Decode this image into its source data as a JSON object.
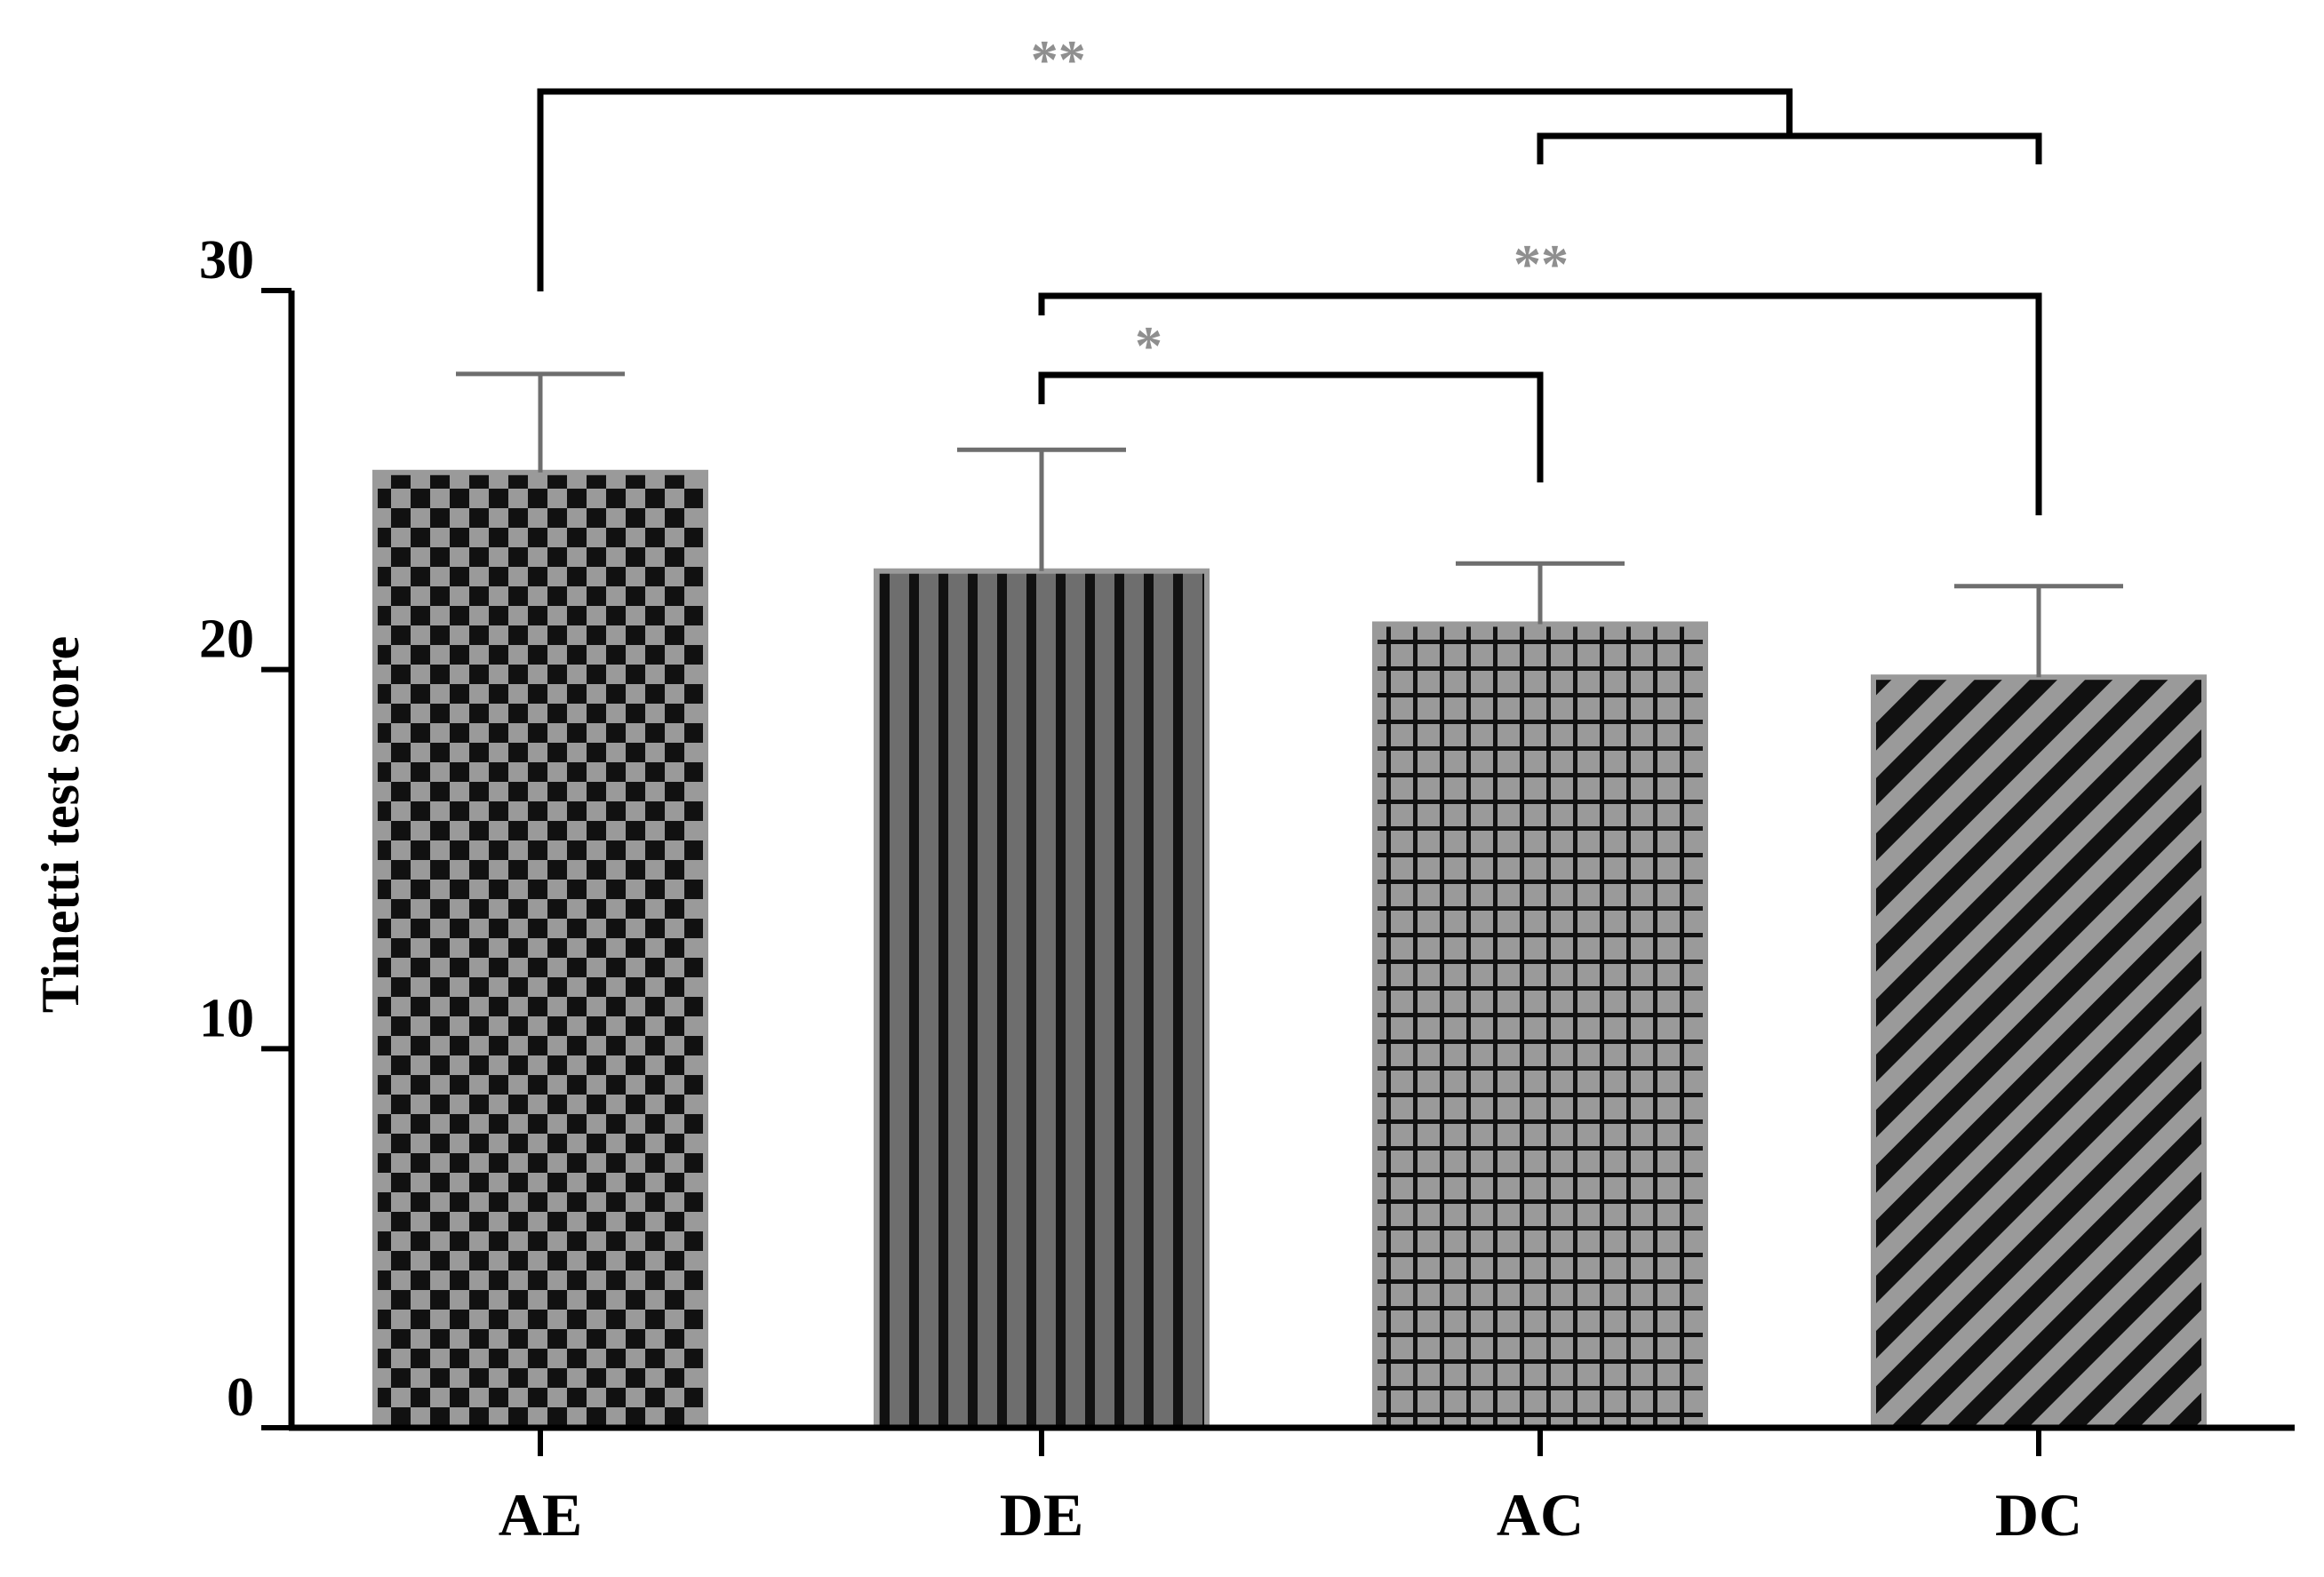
{
  "chart_data": {
    "type": "bar",
    "title": "",
    "xlabel": "",
    "ylabel": "Tinetti test score",
    "ylim": [
      0,
      30
    ],
    "yticks": [
      "0",
      "10",
      "20",
      "30"
    ],
    "categories": [
      "AE",
      "DE",
      "AC",
      "DC"
    ],
    "values": [
      25.2,
      22.6,
      21.2,
      19.8
    ],
    "errors": [
      2.6,
      3.2,
      1.6,
      2.4
    ],
    "patterns": [
      "checker",
      "vertical-stripes",
      "grid",
      "diagonal-stripes"
    ],
    "significance": [
      {
        "groups": [
          "AE",
          "AC+DC"
        ],
        "label": "**"
      },
      {
        "groups": [
          "DE",
          "DC"
        ],
        "label": "**"
      },
      {
        "groups": [
          "DE",
          "AC"
        ],
        "label": "*"
      }
    ],
    "grid": false,
    "legend": "none"
  },
  "colors": {
    "bar_dark": "#111111",
    "bar_mid": "#6e6e6e",
    "bar_light": "#9a9a9a",
    "axis": "#000000",
    "star": "#8f8f8f"
  }
}
